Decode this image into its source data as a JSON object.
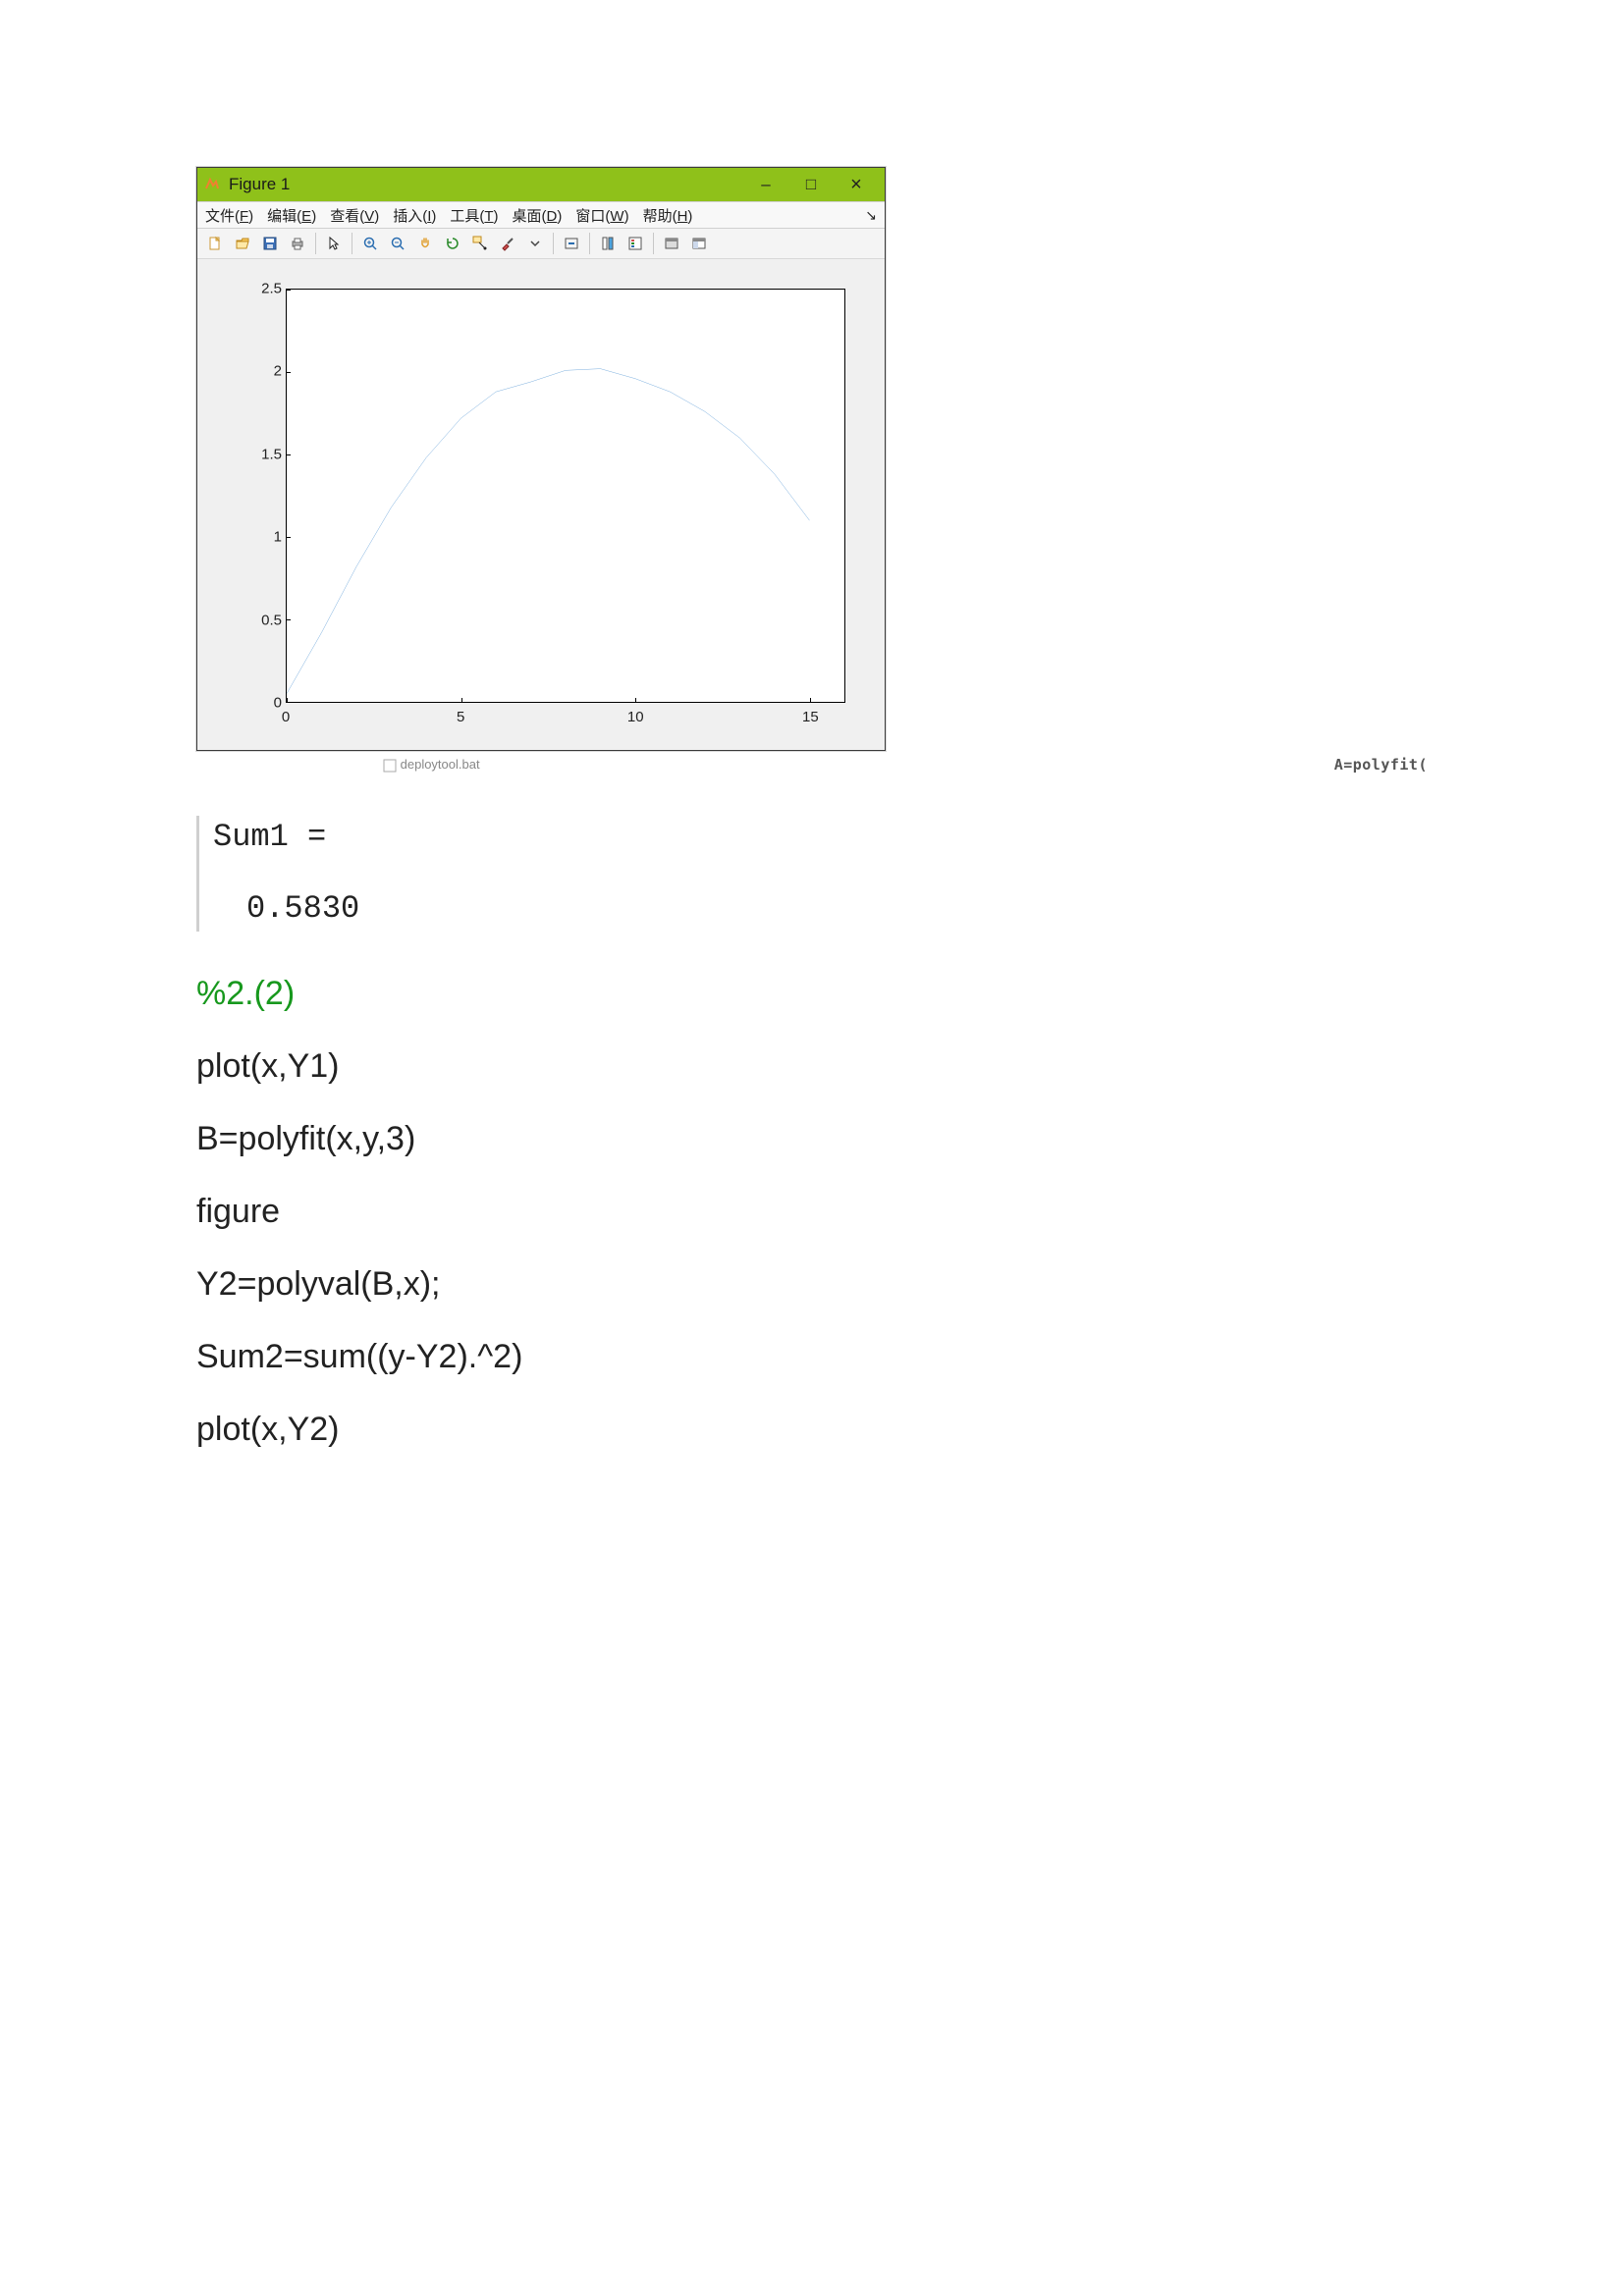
{
  "figure_window": {
    "title": "Figure 1",
    "titlebar_bg": "#8fc11a",
    "titlebar_text_color": "#1a1a1a",
    "app_icon_color": "#f08030",
    "win_buttons": {
      "minimize": "–",
      "maximize": "□",
      "close": "×"
    },
    "menus": [
      "文件(F)",
      "编辑(E)",
      "查看(V)",
      "插入(I)",
      "工具(T)",
      "桌面(D)",
      "窗口(W)",
      "帮助(H)"
    ],
    "toolbar_icons": [
      "new-file-icon",
      "open-file-icon",
      "save-icon",
      "print-icon",
      "sep",
      "pointer-icon",
      "sep",
      "zoom-in-icon",
      "zoom-out-icon",
      "pan-icon",
      "rotate-icon",
      "data-cursor-icon",
      "brush-icon",
      "dropdown-arrow-icon",
      "sep",
      "link-icon",
      "sep",
      "insert-colorbar-icon",
      "insert-legend-icon",
      "sep",
      "hide-plot-tools-icon",
      "show-plot-tools-icon"
    ],
    "canvas_bg": "#f0f0f0",
    "axes_bg": "#ffffff",
    "axes_border": "#000000",
    "partial_text": "A=polyfit(",
    "bottom_strip_text": "deploytool.bat"
  },
  "chart": {
    "type": "line",
    "line_color": "#5b9bd5",
    "line_width": 1.2,
    "xlim": [
      0,
      16
    ],
    "ylim": [
      0,
      2.5
    ],
    "xticks": [
      0,
      5,
      10,
      15
    ],
    "yticks": [
      0,
      0.5,
      1,
      1.5,
      2,
      2.5
    ],
    "tick_fontsize": 15,
    "tick_color": "#222222",
    "x": [
      0,
      1,
      2,
      3,
      4,
      5,
      6,
      7,
      8,
      9,
      10,
      11,
      12,
      13,
      14,
      15
    ],
    "y": [
      0.05,
      0.42,
      0.82,
      1.18,
      1.48,
      1.72,
      1.88,
      1.94,
      2.01,
      2.02,
      1.96,
      1.88,
      1.76,
      1.6,
      1.38,
      1.1
    ]
  },
  "console": {
    "var_name": "Sum1 =",
    "value": "0.5830",
    "font": "Consolas",
    "fontsize": 32,
    "text_color": "#222222",
    "border_color": "#cfcfcf"
  },
  "code": {
    "comment_color": "#17981d",
    "text_color": "#222222",
    "fontsize": 34,
    "lines": [
      {
        "text": "%2.(2)",
        "kind": "comment"
      },
      {
        "text": "plot(x,Y1)",
        "kind": "code"
      },
      {
        "text": "B=polyfit(x,y,3)",
        "kind": "code"
      },
      {
        "text": "figure",
        "kind": "code"
      },
      {
        "text": "Y2=polyval(B,x);",
        "kind": "code"
      },
      {
        "text": "Sum2=sum((y-Y2).^2)",
        "kind": "code"
      },
      {
        "text": "plot(x,Y2)",
        "kind": "code"
      }
    ]
  }
}
